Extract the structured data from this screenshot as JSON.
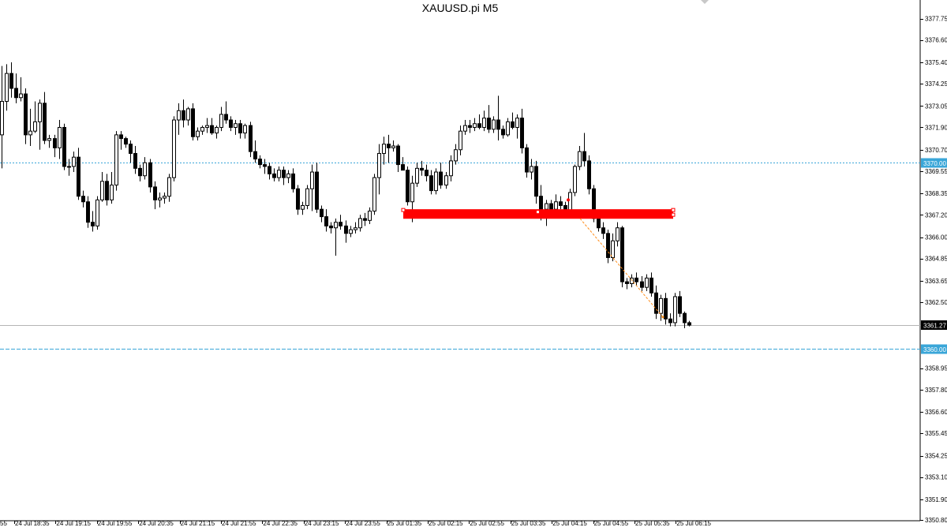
{
  "window": {
    "title": "XAUUSD.pi M5"
  },
  "chart_data": {
    "type": "candlestick",
    "title": "XAUUSD.pi M5",
    "symbol": "XAUUSD.pi",
    "timeframe": "M5",
    "xlabel": "",
    "ylabel": "",
    "ylim": [
      3350.75,
      3378.75
    ],
    "grid": false,
    "legend": "none",
    "y_ticks": [
      "3377.75",
      "3376.60",
      "3375.40",
      "3374.25",
      "3373.05",
      "3371.90",
      "3370.70",
      "3369.55",
      "3368.35",
      "3367.20",
      "3366.00",
      "3364.85",
      "3363.65",
      "3362.50",
      "3361.27",
      "3358.95",
      "3357.80",
      "3356.60",
      "3355.45",
      "3354.25",
      "3353.10",
      "3351.90",
      "3350.80"
    ],
    "x_ticks": [
      "24 Jul 18:35",
      "24 Jul 19:15",
      "24 Jul 19:55",
      "24 Jul 20:35",
      "24 Jul 21:15",
      "24 Jul 21:55",
      "24 Jul 22:35",
      "24 Jul 23:15",
      "24 Jul 23:55",
      "25 Jul 01:35",
      "25 Jul 02:15",
      "25 Jul 02:55",
      "25 Jul 03:35",
      "25 Jul 04:15",
      "25 Jul 04:55",
      "25 Jul 05:35",
      "25 Jul 06:15"
    ],
    "left_edge_label": "55",
    "current_price": "3361.27",
    "horizontal_lines": [
      {
        "price": 3370.0,
        "label": "3370.00",
        "style": "dotted"
      },
      {
        "price": 3360.0,
        "label": "3360.00",
        "style": "dashed"
      }
    ],
    "resistance_zone": {
      "from": 3367.05,
      "to": 3367.35,
      "color": "#ff0000"
    },
    "trend_line": {
      "from": [
        3367.0
      ],
      "to": [
        3361.7
      ],
      "color": "#ff8c1a"
    },
    "candles": [
      [
        3371.5,
        3375.2,
        3369.7,
        3373.3
      ],
      [
        3373.3,
        3375.3,
        3372.8,
        3374.8
      ],
      [
        3374.8,
        3375.4,
        3373.5,
        3374.0
      ],
      [
        3374.0,
        3374.8,
        3373.2,
        3373.5
      ],
      [
        3373.5,
        3374.6,
        3373.3,
        3373.7
      ],
      [
        3373.7,
        3374.0,
        3371.0,
        3371.5
      ],
      [
        3371.5,
        3372.9,
        3370.9,
        3371.7
      ],
      [
        3371.7,
        3373.3,
        3371.6,
        3372.2
      ],
      [
        3372.2,
        3373.4,
        3370.7,
        3373.2
      ],
      [
        3373.2,
        3373.8,
        3371.0,
        3371.2
      ],
      [
        3371.2,
        3371.5,
        3370.8,
        3371.3
      ],
      [
        3371.3,
        3371.5,
        3370.3,
        3370.8
      ],
      [
        3370.8,
        3372.3,
        3370.2,
        3371.9
      ],
      [
        3371.9,
        3372.1,
        3369.6,
        3369.8
      ],
      [
        3369.8,
        3370.2,
        3369.3,
        3369.8
      ],
      [
        3369.8,
        3370.6,
        3369.5,
        3370.3
      ],
      [
        3370.3,
        3370.8,
        3368.0,
        3368.2
      ],
      [
        3368.2,
        3368.5,
        3367.6,
        3367.9
      ],
      [
        3367.9,
        3368.2,
        3366.5,
        3366.8
      ],
      [
        3366.8,
        3367.4,
        3366.3,
        3366.6
      ],
      [
        3366.6,
        3368.2,
        3366.4,
        3368.0
      ],
      [
        3368.0,
        3369.5,
        3367.9,
        3369.0
      ],
      [
        3369.0,
        3369.4,
        3367.7,
        3368.0
      ],
      [
        3368.0,
        3369.5,
        3367.8,
        3368.8
      ],
      [
        3368.8,
        3371.7,
        3368.5,
        3371.5
      ],
      [
        3371.5,
        3371.7,
        3370.7,
        3371.3
      ],
      [
        3371.3,
        3371.4,
        3370.8,
        3371.0
      ],
      [
        3371.0,
        3371.2,
        3370.0,
        3370.5
      ],
      [
        3370.5,
        3370.9,
        3369.4,
        3369.7
      ],
      [
        3369.7,
        3369.9,
        3369.0,
        3369.3
      ],
      [
        3369.3,
        3370.3,
        3369.1,
        3370.0
      ],
      [
        3370.0,
        3370.2,
        3368.4,
        3368.7
      ],
      [
        3368.7,
        3369.0,
        3367.5,
        3368.0
      ],
      [
        3368.0,
        3368.4,
        3367.6,
        3368.1
      ],
      [
        3368.1,
        3368.4,
        3367.8,
        3368.2
      ],
      [
        3368.2,
        3369.4,
        3367.9,
        3369.2
      ],
      [
        3369.2,
        3372.5,
        3369.0,
        3372.3
      ],
      [
        3372.3,
        3373.2,
        3371.5,
        3372.8
      ],
      [
        3372.8,
        3373.4,
        3371.9,
        3372.3
      ],
      [
        3372.3,
        3373.0,
        3372.0,
        3372.9
      ],
      [
        3372.9,
        3373.2,
        3371.2,
        3371.4
      ],
      [
        3371.4,
        3371.9,
        3371.2,
        3371.7
      ],
      [
        3371.7,
        3372.0,
        3371.5,
        3371.9
      ],
      [
        3371.9,
        3372.4,
        3371.6,
        3372.0
      ],
      [
        3372.0,
        3372.4,
        3371.5,
        3371.6
      ],
      [
        3371.6,
        3372.0,
        3371.3,
        3371.9
      ],
      [
        3371.9,
        3373.0,
        3371.7,
        3372.6
      ],
      [
        3372.6,
        3373.3,
        3372.1,
        3372.3
      ],
      [
        3372.3,
        3372.5,
        3371.7,
        3371.9
      ],
      [
        3371.9,
        3372.3,
        3371.5,
        3372.1
      ],
      [
        3372.1,
        3372.3,
        3371.3,
        3371.6
      ],
      [
        3371.6,
        3372.1,
        3371.3,
        3372.0
      ],
      [
        3372.0,
        3372.2,
        3370.3,
        3370.6
      ],
      [
        3370.6,
        3371.2,
        3370.0,
        3370.2
      ],
      [
        3370.2,
        3370.4,
        3369.7,
        3369.9
      ],
      [
        3369.9,
        3370.2,
        3369.4,
        3369.8
      ],
      [
        3369.8,
        3370.0,
        3369.1,
        3369.4
      ],
      [
        3369.4,
        3369.7,
        3369.0,
        3369.2
      ],
      [
        3369.2,
        3369.8,
        3369.0,
        3369.6
      ],
      [
        3369.6,
        3369.8,
        3368.8,
        3369.2
      ],
      [
        3369.2,
        3369.6,
        3368.9,
        3369.4
      ],
      [
        3369.4,
        3369.7,
        3368.4,
        3368.6
      ],
      [
        3368.6,
        3368.8,
        3367.2,
        3367.5
      ],
      [
        3367.5,
        3367.9,
        3367.2,
        3367.7
      ],
      [
        3367.7,
        3368.8,
        3367.5,
        3368.6
      ],
      [
        3368.6,
        3369.9,
        3367.4,
        3369.5
      ],
      [
        3369.5,
        3370.0,
        3367.3,
        3367.5
      ],
      [
        3367.5,
        3367.7,
        3366.8,
        3367.1
      ],
      [
        3367.1,
        3367.5,
        3366.3,
        3366.6
      ],
      [
        3366.6,
        3366.8,
        3366.2,
        3366.5
      ],
      [
        3366.5,
        3367.0,
        3365.0,
        3366.8
      ],
      [
        3366.8,
        3367.2,
        3366.4,
        3366.6
      ],
      [
        3366.6,
        3366.9,
        3365.7,
        3366.2
      ],
      [
        3366.2,
        3366.6,
        3366.0,
        3366.4
      ],
      [
        3366.4,
        3366.8,
        3366.2,
        3366.5
      ],
      [
        3366.5,
        3367.2,
        3366.3,
        3367.0
      ],
      [
        3367.0,
        3367.3,
        3366.6,
        3366.9
      ],
      [
        3366.9,
        3367.6,
        3366.7,
        3367.4
      ],
      [
        3367.4,
        3369.4,
        3367.2,
        3369.2
      ],
      [
        3369.2,
        3371.0,
        3368.3,
        3370.5
      ],
      [
        3370.5,
        3371.4,
        3369.9,
        3371.0
      ],
      [
        3371.0,
        3371.5,
        3370.0,
        3370.8
      ],
      [
        3370.8,
        3371.2,
        3370.6,
        3370.9
      ],
      [
        3370.9,
        3371.0,
        3369.5,
        3369.9
      ],
      [
        3369.9,
        3370.3,
        3369.7,
        3369.6
      ],
      [
        3369.6,
        3369.8,
        3367.7,
        3367.9
      ],
      [
        3367.9,
        3369.3,
        3366.8,
        3368.9
      ],
      [
        3368.9,
        3370.0,
        3368.7,
        3369.7
      ],
      [
        3369.7,
        3370.1,
        3369.3,
        3369.6
      ],
      [
        3369.6,
        3369.9,
        3369.0,
        3369.3
      ],
      [
        3369.3,
        3369.6,
        3368.3,
        3368.5
      ],
      [
        3368.5,
        3369.7,
        3368.3,
        3369.5
      ],
      [
        3369.5,
        3370.0,
        3368.6,
        3368.8
      ],
      [
        3368.8,
        3369.5,
        3368.6,
        3369.3
      ],
      [
        3369.3,
        3370.4,
        3369.0,
        3370.1
      ],
      [
        3370.1,
        3371.0,
        3369.9,
        3370.7
      ],
      [
        3370.7,
        3372.0,
        3370.4,
        3371.7
      ],
      [
        3371.7,
        3372.3,
        3371.5,
        3372.0
      ],
      [
        3372.0,
        3372.3,
        3371.6,
        3371.9
      ],
      [
        3371.9,
        3372.4,
        3371.7,
        3372.1
      ],
      [
        3372.1,
        3372.6,
        3371.8,
        3371.9
      ],
      [
        3371.9,
        3372.8,
        3371.7,
        3372.4
      ],
      [
        3372.4,
        3373.1,
        3371.6,
        3371.8
      ],
      [
        3371.8,
        3372.5,
        3371.6,
        3372.3
      ],
      [
        3372.3,
        3373.6,
        3371.2,
        3371.8
      ],
      [
        3371.8,
        3372.0,
        3371.3,
        3371.5
      ],
      [
        3371.5,
        3372.4,
        3371.4,
        3372.2
      ],
      [
        3372.2,
        3372.7,
        3371.8,
        3371.9
      ],
      [
        3371.9,
        3372.6,
        3371.3,
        3372.4
      ],
      [
        3372.4,
        3372.9,
        3370.5,
        3370.8
      ],
      [
        3370.8,
        3371.0,
        3369.2,
        3369.5
      ],
      [
        3369.5,
        3370.2,
        3369.1,
        3369.8
      ],
      [
        3369.8,
        3370.1,
        3367.8,
        3368.2
      ],
      [
        3368.2,
        3368.8,
        3366.9,
        3367.5
      ],
      [
        3367.5,
        3368.0,
        3366.6,
        3367.8
      ],
      [
        3367.8,
        3368.0,
        3367.3,
        3367.5
      ],
      [
        3367.5,
        3368.3,
        3367.0,
        3367.9
      ],
      [
        3367.9,
        3368.2,
        3367.5,
        3367.7
      ],
      [
        3367.7,
        3367.9,
        3367.0,
        3367.2
      ],
      [
        3367.2,
        3368.6,
        3367.0,
        3368.4
      ],
      [
        3368.4,
        3369.9,
        3368.2,
        3369.8
      ],
      [
        3369.8,
        3370.9,
        3369.6,
        3370.6
      ],
      [
        3370.6,
        3371.6,
        3369.8,
        3370.1
      ],
      [
        3370.1,
        3370.4,
        3368.3,
        3368.6
      ],
      [
        3368.6,
        3368.8,
        3366.8,
        3367.0
      ],
      [
        3367.0,
        3367.4,
        3366.3,
        3366.5
      ],
      [
        3366.5,
        3366.8,
        3365.9,
        3366.2
      ],
      [
        3366.2,
        3366.4,
        3364.6,
        3364.9
      ],
      [
        3364.9,
        3366.2,
        3364.7,
        3365.8
      ],
      [
        3365.8,
        3366.8,
        3365.5,
        3366.5
      ],
      [
        3366.5,
        3366.6,
        3363.3,
        3363.6
      ],
      [
        3363.6,
        3363.8,
        3363.2,
        3363.5
      ],
      [
        3363.5,
        3364.0,
        3363.3,
        3363.8
      ],
      [
        3363.8,
        3364.1,
        3363.4,
        3363.6
      ],
      [
        3363.6,
        3363.9,
        3363.1,
        3363.3
      ],
      [
        3363.3,
        3364.0,
        3363.1,
        3363.8
      ],
      [
        3363.8,
        3364.1,
        3362.8,
        3363.0
      ],
      [
        3363.0,
        3363.4,
        3361.6,
        3361.9
      ],
      [
        3361.9,
        3362.9,
        3361.5,
        3362.7
      ],
      [
        3362.7,
        3363.0,
        3361.3,
        3361.6
      ],
      [
        3361.6,
        3361.9,
        3361.2,
        3361.4
      ],
      [
        3361.4,
        3363.0,
        3361.2,
        3362.8
      ],
      [
        3362.8,
        3363.1,
        3361.7,
        3361.9
      ],
      [
        3361.9,
        3362.0,
        3361.1,
        3361.4
      ],
      [
        3361.4,
        3361.5,
        3361.2,
        3361.27
      ]
    ]
  }
}
